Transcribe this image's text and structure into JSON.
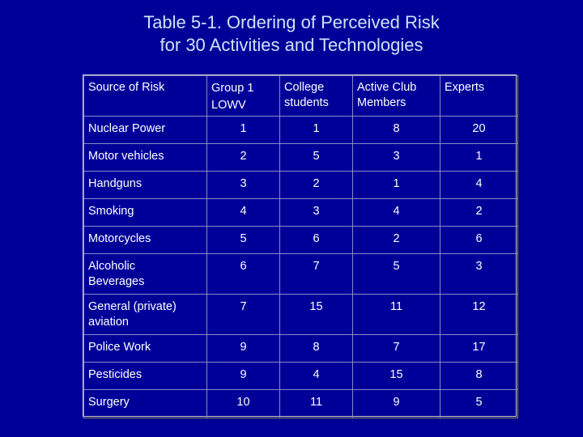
{
  "title": {
    "line1": "Table 5-1. Ordering of Perceived Risk",
    "line2": "for 30 Activities and Technologies"
  },
  "table": {
    "headers": [
      [
        "Source of Risk"
      ],
      [
        "Group 1",
        "LOWV"
      ],
      [
        "College",
        "students"
      ],
      [
        "Active Club",
        "Members"
      ],
      [
        "Experts"
      ]
    ],
    "rows": [
      {
        "label": [
          "Nuclear Power"
        ],
        "values": [
          "1",
          "1",
          "8",
          "20"
        ]
      },
      {
        "label": [
          "Motor vehicles"
        ],
        "values": [
          "2",
          "5",
          "3",
          "1"
        ]
      },
      {
        "label": [
          "Handguns"
        ],
        "values": [
          "3",
          "2",
          "1",
          "4"
        ]
      },
      {
        "label": [
          "Smoking"
        ],
        "values": [
          "4",
          "3",
          "4",
          "2"
        ]
      },
      {
        "label": [
          "Motorcycles"
        ],
        "values": [
          "5",
          "6",
          "2",
          "6"
        ]
      },
      {
        "label": [
          "Alcoholic",
          "Beverages"
        ],
        "values": [
          "6",
          "7",
          "5",
          "3"
        ]
      },
      {
        "label": [
          "General (private)",
          "aviation"
        ],
        "values": [
          "7",
          "15",
          "11",
          "12"
        ]
      },
      {
        "label": [
          "Police Work"
        ],
        "values": [
          "9",
          "8",
          "7",
          "17"
        ]
      },
      {
        "label": [
          "Pesticides"
        ],
        "values": [
          "9",
          "4",
          "15",
          "8"
        ]
      },
      {
        "label": [
          "Surgery"
        ],
        "values": [
          "10",
          "11",
          "9",
          "5"
        ]
      }
    ]
  },
  "colors": {
    "background": "#000099",
    "title": "#c9e4f8",
    "text": "#ffffff"
  }
}
